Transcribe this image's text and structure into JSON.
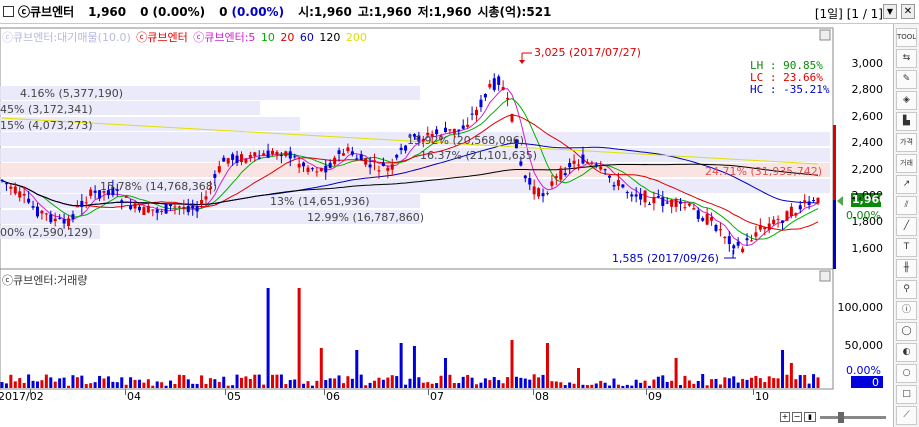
{
  "titlebar": {
    "name": "ⓒ큐브엔터",
    "price": "1,960",
    "change": "0",
    "change_pct": "(0.00%)",
    "change2": "0",
    "change2_pct": "(0.00%)",
    "open": "시:1,960",
    "high": "고:1,960",
    "low": "저:1,960",
    "mcap": "시총(억):521",
    "period": "[1일]",
    "page": "[1 / 1]"
  },
  "legend": {
    "faded": "ⓒ큐브엔터:대기매물(10.0)",
    "name": "ⓒ큐브엔터",
    "ma_name": "ⓒ큐브엔터:",
    "ma5": "5",
    "ma10": "10",
    "ma20": "20",
    "ma60": "60",
    "ma120": "120",
    "ma200": "200"
  },
  "stats": {
    "lh": "LH :  90.85%",
    "lc": "LC :  23.66%",
    "hc": "HC : -35.21%"
  },
  "annotations": {
    "high": "3,025 (2017/07/27)",
    "low": "1,585 (2017/09/26)",
    "vp1": "4.16% (5,377,190)",
    "vp2": "45% (3,172,341)",
    "vp3": "15% (4,073,273)",
    "vp4": "15.92% (20,568,096)",
    "vp5": "16.37% (21,101,635)",
    "vp6": "15.78% (14,768,368)",
    "vp7": "24.71% (31,935,742)",
    "vp8": "13% (14,651,936)",
    "vp9": "12.99% (16,787,860)",
    "vp10": "00% (2,590,129)"
  },
  "price_axis": [
    "3,000",
    "2,800",
    "2,600",
    "2,400",
    "2,200",
    "2,000",
    "1,800",
    "1,600"
  ],
  "price_tags": {
    "current": "1,960",
    "pct": "0.00%"
  },
  "volume_panel": {
    "title": "ⓒ큐브엔터:거래량",
    "axis": [
      "100,000",
      "50,000"
    ],
    "tag_pct": "0.00%",
    "tag_val": "0"
  },
  "x_axis": [
    "2017/02",
    "04",
    "05",
    "06",
    "07",
    "08",
    "09",
    "10"
  ],
  "colors": {
    "up": "#e00000",
    "down": "#0000dd",
    "ma5": "#d020d0",
    "ma10": "#00b000",
    "ma20": "#e00000",
    "ma60": "#0000c0",
    "ma120": "#000000",
    "ma200": "#e0e000"
  }
}
